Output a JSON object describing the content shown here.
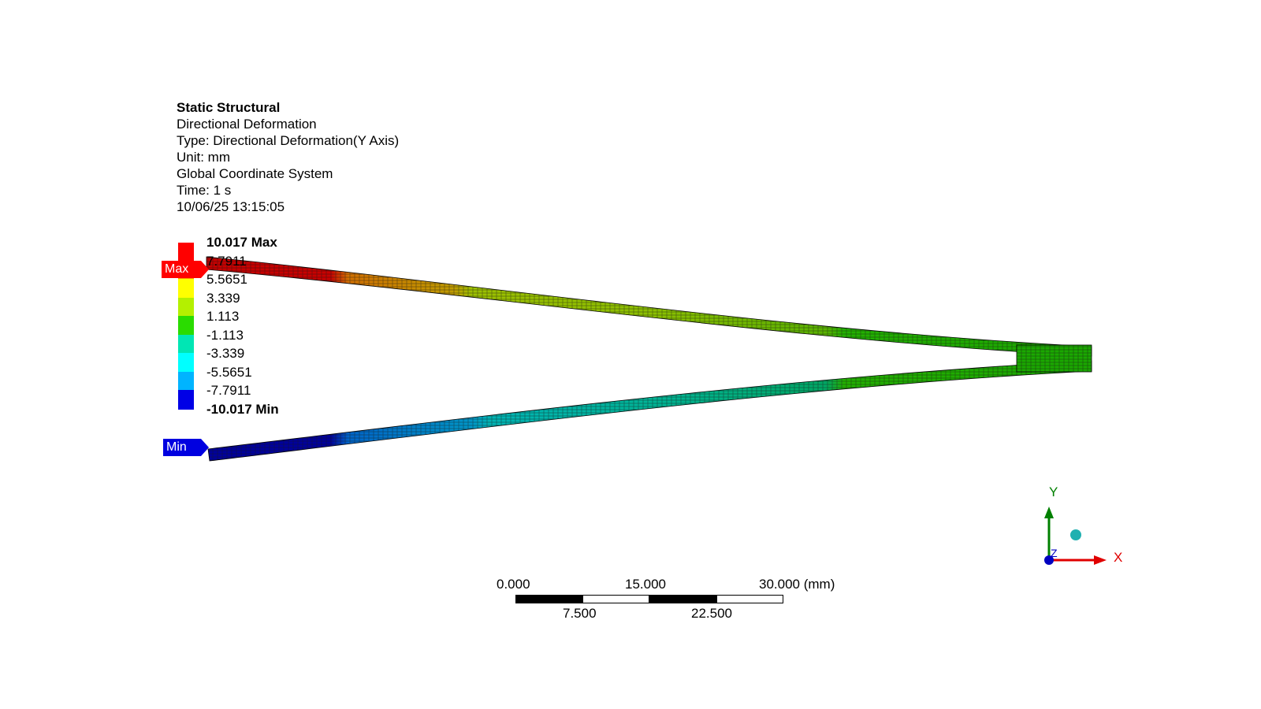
{
  "info": {
    "title": "Static Structural",
    "line1": "Directional Deformation",
    "line2": "Type: Directional Deformation(Y Axis)",
    "line3": "Unit: mm",
    "line4": "Global Coordinate System",
    "line5": "Time: 1 s",
    "line6": "10/06/25 13:15:05"
  },
  "legend": {
    "max_label": "10.017 Max",
    "min_label": "-10.017 Min",
    "values": [
      "7.7911",
      "5.5651",
      "3.339",
      "1.113",
      "-1.113",
      "-3.339",
      "-5.5651",
      "-7.7911"
    ],
    "colors": [
      "#ff0000",
      "#ff8c00",
      "#ffff00",
      "#b4f000",
      "#2adc00",
      "#00e6b4",
      "#00ffff",
      "#00b4ff",
      "#0000e6"
    ]
  },
  "probes": {
    "max": "Max",
    "min": "Min"
  },
  "scale": {
    "labels_top": [
      "0.000",
      "15.000",
      "30.000 (mm)"
    ],
    "labels_bottom": [
      "7.500",
      "22.500"
    ]
  },
  "triad": {
    "x": "X",
    "y": "Y",
    "z": "Z",
    "x_color": "#e00000",
    "y_color": "#008000",
    "z_color": "#0000c0"
  }
}
